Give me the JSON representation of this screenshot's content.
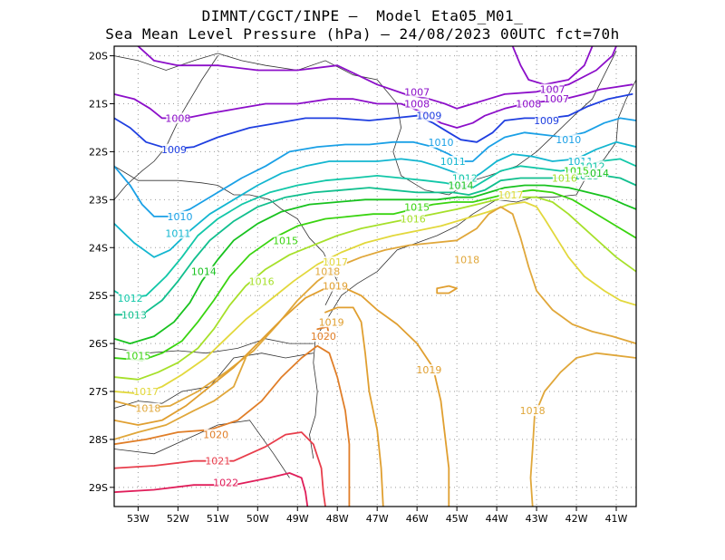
{
  "header": {
    "line1": "DIMNT/CGCT/INPE —  Model Eta05_M01_",
    "line2": "Sea Mean Level Pressure (hPa) — 24/08/2023 00UTC fct=70h"
  },
  "axes": {
    "lon_labels": [
      "53W",
      "52W",
      "51W",
      "50W",
      "49W",
      "48W",
      "47W",
      "46W",
      "45W",
      "44W",
      "43W",
      "42W",
      "41W"
    ],
    "lat_labels": [
      "20S",
      "21S",
      "22S",
      "23S",
      "24S",
      "25S",
      "26S",
      "27S",
      "28S",
      "29S"
    ],
    "lon_range": [
      -53.6,
      -40.5
    ],
    "lat_range": [
      -29.4,
      -19.8
    ],
    "grid": "dotted"
  },
  "contour_colors": {
    "1007": "#8c0fc9",
    "1008": "#8c0fc9",
    "1009": "#1f3fe0",
    "1010": "#1aa0e6",
    "1011": "#13b6d0",
    "1012": "#12c7a8",
    "1013": "#11bf8e",
    "1014": "#18c21f",
    "1015": "#3ad410",
    "1016": "#a6e02a",
    "1017": "#e2d83c",
    "1018": "#e0a73a",
    "1019": "#e09f30",
    "1020": "#e07e28",
    "1021": "#e83e4c",
    "1022": "#e01e5a"
  },
  "contour_labels": [
    {
      "text": "1007",
      "lon": -46.0,
      "lat": -20.75,
      "level": "1007"
    },
    {
      "text": "1007",
      "lon": -42.6,
      "lat": -20.7,
      "level": "1007"
    },
    {
      "text": "1007",
      "lon": -42.5,
      "lat": -20.9,
      "level": "1007"
    },
    {
      "text": "1008",
      "lon": -52.0,
      "lat": -21.3,
      "level": "1008"
    },
    {
      "text": "1008",
      "lon": -46.0,
      "lat": -21.0,
      "level": "1008"
    },
    {
      "text": "1008",
      "lon": -43.2,
      "lat": -21.0,
      "level": "1008"
    },
    {
      "text": "1009",
      "lon": -52.1,
      "lat": -21.95,
      "level": "1009"
    },
    {
      "text": "1009",
      "lon": -45.7,
      "lat": -21.25,
      "level": "1009"
    },
    {
      "text": "1009",
      "lon": -42.75,
      "lat": -21.35,
      "level": "1009"
    },
    {
      "text": "1010",
      "lon": -51.95,
      "lat": -23.35,
      "level": "1010"
    },
    {
      "text": "1010",
      "lon": -45.4,
      "lat": -21.8,
      "level": "1010"
    },
    {
      "text": "1010",
      "lon": -42.2,
      "lat": -21.75,
      "level": "1010"
    },
    {
      "text": "1011",
      "lon": -52.0,
      "lat": -23.7,
      "level": "1011"
    },
    {
      "text": "1011",
      "lon": -45.1,
      "lat": -22.2,
      "level": "1011"
    },
    {
      "text": "1011",
      "lon": -41.9,
      "lat": -22.2,
      "level": "1011"
    },
    {
      "text": "1012",
      "lon": -53.2,
      "lat": -25.05,
      "level": "1012"
    },
    {
      "text": "1012",
      "lon": -44.8,
      "lat": -22.55,
      "level": "1012"
    },
    {
      "text": "1012",
      "lon": -41.6,
      "lat": -22.3,
      "level": "1012"
    },
    {
      "text": "1013",
      "lon": -53.1,
      "lat": -25.4,
      "level": "1013"
    },
    {
      "text": "1013",
      "lon": -41.75,
      "lat": -22.5,
      "level": "1013"
    },
    {
      "text": "1014",
      "lon": -51.35,
      "lat": -24.5,
      "level": "1014"
    },
    {
      "text": "1014",
      "lon": -44.9,
      "lat": -22.7,
      "level": "1014"
    },
    {
      "text": "1014",
      "lon": -41.5,
      "lat": -22.45,
      "level": "1014"
    },
    {
      "text": "1015",
      "lon": -53.0,
      "lat": -26.25,
      "level": "1015"
    },
    {
      "text": "1015",
      "lon": -49.3,
      "lat": -23.85,
      "level": "1015"
    },
    {
      "text": "1015",
      "lon": -46.0,
      "lat": -23.15,
      "level": "1015"
    },
    {
      "text": "1015",
      "lon": -42.0,
      "lat": -22.4,
      "level": "1015"
    },
    {
      "text": "1016",
      "lon": -49.9,
      "lat": -24.7,
      "level": "1016"
    },
    {
      "text": "1016",
      "lon": -46.1,
      "lat": -23.4,
      "level": "1016"
    },
    {
      "text": "1016",
      "lon": -42.3,
      "lat": -22.55,
      "level": "1016"
    },
    {
      "text": "1017",
      "lon": -52.8,
      "lat": -27.0,
      "level": "1017"
    },
    {
      "text": "1017",
      "lon": -48.05,
      "lat": -24.3,
      "level": "1017"
    },
    {
      "text": "1017",
      "lon": -43.65,
      "lat": -22.9,
      "level": "1017"
    },
    {
      "text": "1018",
      "lon": -52.75,
      "lat": -27.35,
      "level": "1018"
    },
    {
      "text": "1018",
      "lon": -48.25,
      "lat": -24.5,
      "level": "1018"
    },
    {
      "text": "1018",
      "lon": -44.75,
      "lat": -24.25,
      "level": "1018"
    },
    {
      "text": "1018",
      "lon": -43.1,
      "lat": -27.4,
      "level": "1018"
    },
    {
      "text": "1019",
      "lon": -48.05,
      "lat": -24.8,
      "level": "1019"
    },
    {
      "text": "1019",
      "lon": -48.15,
      "lat": -25.55,
      "level": "1019"
    },
    {
      "text": "1019",
      "lon": -45.7,
      "lat": -26.55,
      "level": "1019"
    },
    {
      "text": "1020",
      "lon": -48.35,
      "lat": -25.85,
      "level": "1020"
    },
    {
      "text": "1020",
      "lon": -51.05,
      "lat": -27.9,
      "level": "1020"
    },
    {
      "text": "1021",
      "lon": -51.0,
      "lat": -28.45,
      "level": "1021"
    },
    {
      "text": "1022",
      "lon": -50.8,
      "lat": -28.9,
      "level": "1022"
    }
  ]
}
